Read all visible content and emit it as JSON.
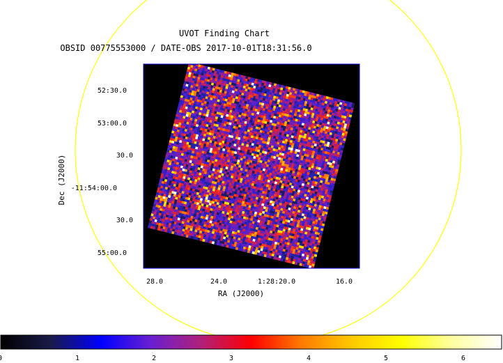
{
  "chart": {
    "title": "UVOT Finding Chart",
    "subtitle": "OBSID 00775553000 / DATE-OBS 2017-10-01T18:31:56.0",
    "xlabel": "RA (J2000)",
    "ylabel": "Dec (J2000)",
    "ra_ticks": [
      "28.0",
      "24.0",
      "1:28:20.0",
      "16.0"
    ],
    "dec_ticks": [
      "52:30.0",
      "53:00.0",
      "30.0",
      "-11:54:00.0",
      "30.0",
      "55:00.0"
    ],
    "colorbar_ticks": [
      "0",
      "1",
      "2",
      "3",
      "4",
      "5",
      "6"
    ],
    "colormap": [
      "#000000",
      "#1a1a4a",
      "#0000ff",
      "#6a1fd0",
      "#b0207a",
      "#ff0000",
      "#ff7a00",
      "#ffc800",
      "#ffff00",
      "#ffffa0",
      "#ffffff"
    ],
    "colors": {
      "circle": "#ffff00",
      "frame": "#0000cc",
      "background": "#000000"
    }
  }
}
